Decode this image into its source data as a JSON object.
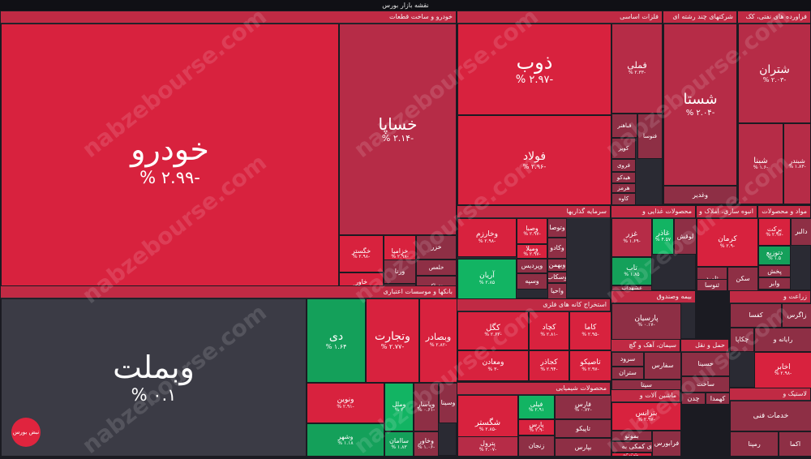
{
  "page_title": "نقشه بازار بورس",
  "watermark_text": "nabzebourse.com",
  "logo_text": "نبض بورس",
  "colors": {
    "neg_strong": "#d8223e",
    "neg_mid": "#b62c47",
    "neg_weak": "#8e2f45",
    "neutral": "#3b3b45",
    "pos": "#14a05a",
    "pos_strong": "#12b463"
  },
  "chart_data": {
    "type": "treemap",
    "sectors": [
      {
        "name": "خودرو و ساخت قطعات",
        "tiles": [
          {
            "symbol": "خودرو",
            "change": "-۲.۹۹ %"
          },
          {
            "symbol": "خساپا",
            "change": "-۲.۱۴ %"
          },
          {
            "symbol": "خگستر",
            "change": "-۲.۹۸ %"
          },
          {
            "symbol": "خزامیا",
            "change": "-۲.۹۸ %"
          },
          {
            "symbol": "خاور",
            "change": "-۲.۹۲ %"
          },
          {
            "symbol": "ورنا",
            "change": ""
          },
          {
            "symbol": "خزر",
            "change": ""
          },
          {
            "symbol": "خلعص",
            "change": ""
          },
          {
            "symbol": "خکار",
            "change": ""
          },
          {
            "symbol": "ختراک",
            "change": ""
          }
        ]
      },
      {
        "name": "بانکها و موسسات اعتباری",
        "tiles": [
          {
            "symbol": "وبملت",
            "change": "۰.۱ %"
          },
          {
            "symbol": "دی",
            "change": "۱.۶۴ %"
          },
          {
            "symbol": "وتجارت",
            "change": "-۲.۷۷ %"
          },
          {
            "symbol": "وبصادر",
            "change": "-۲.۸۲ %"
          },
          {
            "symbol": "ونوین",
            "change": "-۲.۹۱ %"
          },
          {
            "symbol": "وشهر",
            "change": "۱.۱۸ %"
          },
          {
            "symbol": "وملل",
            "change": "۳ %"
          },
          {
            "symbol": "وپاسار",
            "change": "-۰.۶۱ %"
          },
          {
            "symbol": "ساامان",
            "change": "۱.۸۳ %"
          },
          {
            "symbol": "وخاور",
            "change": "-۱.۰۶ %"
          },
          {
            "symbol": "وسینا",
            "change": ""
          }
        ]
      },
      {
        "name": "فلزات اساسی",
        "tiles": [
          {
            "symbol": "ذوب",
            "change": "-۲.۹۷ %"
          },
          {
            "symbol": "فولاد",
            "change": "-۲.۹۶ %"
          },
          {
            "symbol": "فملی",
            "change": "-۲.۳۳ %"
          },
          {
            "symbol": "فباهنر",
            "change": ""
          },
          {
            "symbol": "کویر",
            "change": ""
          },
          {
            "symbol": "فنوسا",
            "change": ""
          },
          {
            "symbol": "فروی",
            "change": ""
          },
          {
            "symbol": "هیدکو",
            "change": ""
          },
          {
            "symbol": "هرمز",
            "change": ""
          },
          {
            "symbol": "کاوه",
            "change": ""
          }
        ]
      },
      {
        "name": "شرکتهای چند رشته ای",
        "tiles": [
          {
            "symbol": "شستا",
            "change": "-۲.۰۴ %"
          },
          {
            "symbol": "وغدیر",
            "change": ""
          }
        ]
      },
      {
        "name": "فراورده های نفتی، کک",
        "tiles": [
          {
            "symbol": "شتران",
            "change": "-۲.۰۳ %"
          },
          {
            "symbol": "شبنا",
            "change": "-۱.۶ %"
          },
          {
            "symbol": "شبندر",
            "change": "-۱.۸۳ %"
          }
        ]
      },
      {
        "name": "سرمایه گذاریها",
        "tiles": [
          {
            "symbol": "وخارزم",
            "change": "-۲.۹۸ %"
          },
          {
            "symbol": "وصبا",
            "change": "-۲.۹۷ %"
          },
          {
            "symbol": "ومیلا",
            "change": "-۲.۹۷ %"
          },
          {
            "symbol": "وتوصا",
            "change": ""
          },
          {
            "symbol": "آریان",
            "change": "۲.۸۵ %"
          },
          {
            "symbol": "وپردیس",
            "change": ""
          },
          {
            "symbol": "وکادو",
            "change": ""
          },
          {
            "symbol": "وبهمن",
            "change": ""
          },
          {
            "symbol": "وسکاب",
            "change": ""
          },
          {
            "symbol": "وسپه",
            "change": ""
          },
          {
            "symbol": "واحیا",
            "change": ""
          }
        ]
      },
      {
        "name": "محصولات غذایی و",
        "tiles": [
          {
            "symbol": "غزر",
            "change": "-۱.۶۹ %"
          },
          {
            "symbol": "غاذر",
            "change": "۴.۵۷ %"
          },
          {
            "symbol": "تاب",
            "change": "۱.۸۵ %"
          },
          {
            "symbol": "غشهداب",
            "change": ""
          },
          {
            "symbol": "لوقش",
            "change": ""
          }
        ]
      },
      {
        "name": "انبوه سازی، املاک و",
        "tiles": [
          {
            "symbol": "کرمان",
            "change": "-۲.۹ %"
          },
          {
            "symbol": "ثامید",
            "change": ""
          },
          {
            "symbol": "ثنوسا",
            "change": ""
          },
          {
            "symbol": "سکن",
            "change": ""
          }
        ]
      },
      {
        "name": "مواد و محصولات",
        "tiles": [
          {
            "symbol": "برکت",
            "change": "-۲.۹۷ %"
          },
          {
            "symbol": "دالبر",
            "change": ""
          },
          {
            "symbol": "دتوزیع",
            "change": "۱.۵ %"
          },
          {
            "symbol": "پخش",
            "change": ""
          },
          {
            "symbol": "وابر",
            "change": ""
          }
        ]
      },
      {
        "name": "استخراج کانه های فلزی",
        "tiles": [
          {
            "symbol": "کگل",
            "change": "-۲.۶۲ %"
          },
          {
            "symbol": "کچاد",
            "change": "-۲.۸۱ %"
          },
          {
            "symbol": "کاما",
            "change": "-۲.۹۵ %"
          },
          {
            "symbol": "ومعادن",
            "change": "-۳ %"
          },
          {
            "symbol": "کجاذر",
            "change": "-۲.۹۴ %"
          },
          {
            "symbol": "تاصیکو",
            "change": "-۲.۹۷ %"
          }
        ]
      },
      {
        "name": "بیمه وصندوق",
        "tiles": [
          {
            "symbol": "پارسیان",
            "change": "-۰.۱۷ %"
          }
        ]
      },
      {
        "name": "سیمان، آهک و گچ",
        "tiles": [
          {
            "symbol": "سرود",
            "change": ""
          },
          {
            "symbol": "ستران",
            "change": ""
          },
          {
            "symbol": "سفارس",
            "change": ""
          },
          {
            "symbol": "سیتا",
            "change": ""
          }
        ]
      },
      {
        "name": "حمل و نقل",
        "tiles": [
          {
            "symbol": "حسینا",
            "change": ""
          },
          {
            "symbol": "ساخت",
            "change": ""
          },
          {
            "symbol": "چدن",
            "change": ""
          },
          {
            "symbol": "کهمدا",
            "change": ""
          },
          {
            "symbol": "کترام",
            "change": ""
          },
          {
            "symbol": "بجهرم",
            "change": "-۲.۹۵ %"
          }
        ]
      },
      {
        "name": "زراعت و",
        "tiles": [
          {
            "symbol": "کفسا",
            "change": ""
          },
          {
            "symbol": "زاگرس",
            "change": ""
          },
          {
            "symbol": "چکاپا",
            "change": ""
          },
          {
            "symbol": "رایانه و",
            "change": ""
          },
          {
            "symbol": "اخابر",
            "change": "-۲.۹۸ %"
          }
        ]
      },
      {
        "name": "محصولات شیمیایی",
        "tiles": [
          {
            "symbol": "شگستر",
            "change": "-۲.۸۵ %"
          },
          {
            "symbol": "فیلی",
            "change": "۲.۹۱ %"
          },
          {
            "symbol": "فارس",
            "change": "-۰.۷۲ %"
          },
          {
            "symbol": "پارس",
            "change": "-۲.۹ %"
          },
          {
            "symbol": "تاپیکو",
            "change": ""
          },
          {
            "symbol": "پترول",
            "change": "-۲.۰۷ %"
          },
          {
            "symbol": "زنجان",
            "change": ""
          },
          {
            "symbol": "بپارس",
            "change": ""
          }
        ]
      },
      {
        "name": "ماشین آلات و",
        "tiles": [
          {
            "symbol": "بترانس",
            "change": "-۲.۹۷ %"
          },
          {
            "symbol": "بموتو",
            "change": ""
          },
          {
            "symbol": "فعالیتهای کمکی به",
            "change": ""
          },
          {
            "symbol": "وتوس",
            "change": "-۲.۹۴ %"
          },
          {
            "symbol": "فرابورس",
            "change": ""
          }
        ]
      },
      {
        "name": "لاستیک و",
        "tiles": [
          {
            "symbol": "خدمات فنی",
            "change": ""
          },
          {
            "symbol": "رمپنا",
            "change": ""
          },
          {
            "symbol": "اکما",
            "change": ""
          }
        ]
      }
    ]
  }
}
